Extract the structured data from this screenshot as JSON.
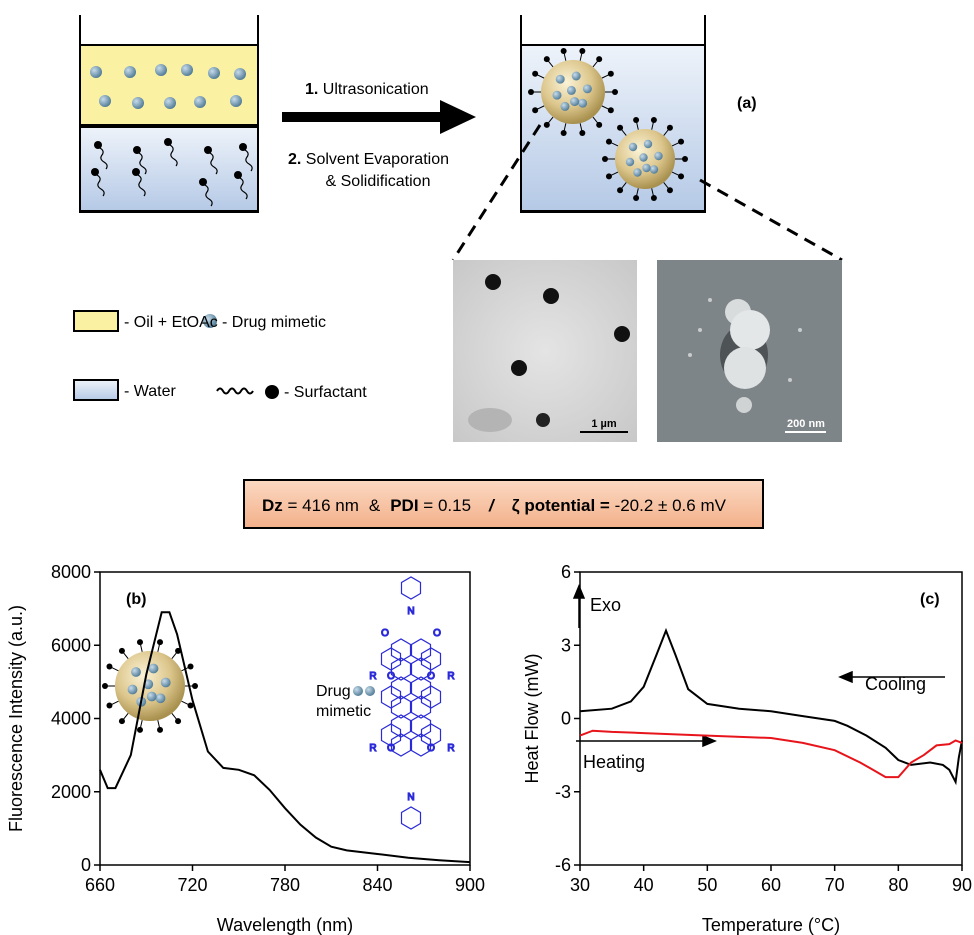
{
  "figure": {
    "panel_label": "(a)",
    "step1_num": "1.",
    "step1_text": "Ultrasonication",
    "step2_num": "2.",
    "step2_text": "Solvent Evaporation",
    "step2_text2": "& Solidification",
    "legend": {
      "oil": "- Oil + EtOAc",
      "drug": "- Drug mimetic",
      "water": "- Water",
      "surfactant": "- Surfactant"
    },
    "tem_scale": "1 µm",
    "sem_scale": "200 nm",
    "info_box": {
      "dz_label": "Dz",
      "dz_value": "= 416 nm",
      "amp": "&",
      "pdi_label": "PDI",
      "pdi_value": "= 0.15",
      "slash": "/",
      "zeta_label": "ζ potential =",
      "zeta_value": "-20.2 ± 0.6 mV"
    },
    "structure_labels": [
      "N",
      "O",
      "O",
      "R",
      "O",
      "O",
      "R",
      "R",
      "O",
      "O",
      "R",
      "N"
    ]
  },
  "chart_data": [
    {
      "type": "line",
      "xlabel": "Wavelength (nm)",
      "ylabel": "Fluorescence Intensity (a.u.)",
      "annotations": [
        "(b)",
        "Drug",
        "mimetic"
      ],
      "color": "#000000",
      "x": [
        660,
        665,
        670,
        680,
        690,
        700,
        705,
        710,
        720,
        730,
        740,
        750,
        760,
        770,
        780,
        790,
        800,
        810,
        820,
        840,
        860,
        880,
        900
      ],
      "values": [
        2600,
        2100,
        2100,
        3000,
        5200,
        6900,
        6900,
        6300,
        4500,
        3100,
        2650,
        2600,
        2450,
        2050,
        1550,
        1100,
        750,
        500,
        400,
        300,
        200,
        130,
        80
      ],
      "xlim": [
        660,
        900
      ],
      "xticks": [
        660,
        720,
        780,
        840,
        900
      ],
      "ylim": [
        0,
        8000
      ],
      "yticks": [
        0,
        2000,
        4000,
        6000,
        8000
      ]
    },
    {
      "type": "line",
      "xlabel": "Temperature (°C)",
      "ylabel": "Heat Flow (mW)",
      "annotations": [
        "(c)",
        "Exo"
      ],
      "series": [
        {
          "name": "Cooling",
          "color": "#000000",
          "x": [
            30,
            35,
            38,
            40,
            42,
            43.5,
            45,
            47,
            50,
            55,
            60,
            65,
            70,
            72,
            75,
            78,
            80,
            82,
            85,
            87,
            88,
            89,
            89.5,
            90
          ],
          "values": [
            0.3,
            0.4,
            0.7,
            1.3,
            2.6,
            3.6,
            2.6,
            1.2,
            0.6,
            0.4,
            0.3,
            0.1,
            -0.1,
            -0.3,
            -0.7,
            -1.2,
            -1.7,
            -1.9,
            -1.8,
            -1.9,
            -2.1,
            -2.6,
            -1.6,
            -0.9
          ]
        },
        {
          "name": "Heating",
          "color": "#e8141b",
          "x": [
            30,
            32,
            35,
            40,
            50,
            60,
            65,
            70,
            74,
            76,
            78,
            80,
            82,
            84,
            86,
            88,
            89,
            90
          ],
          "values": [
            -0.7,
            -0.5,
            -0.55,
            -0.6,
            -0.7,
            -0.8,
            -1.0,
            -1.3,
            -1.8,
            -2.1,
            -2.4,
            -2.4,
            -1.8,
            -1.5,
            -1.1,
            -1.05,
            -0.9,
            -1.0
          ]
        }
      ],
      "xlim": [
        30,
        90
      ],
      "xticks": [
        30,
        40,
        50,
        60,
        70,
        80,
        90
      ],
      "ylim": [
        -6,
        6
      ],
      "yticks": [
        -6,
        -3,
        0,
        3,
        6
      ]
    }
  ]
}
